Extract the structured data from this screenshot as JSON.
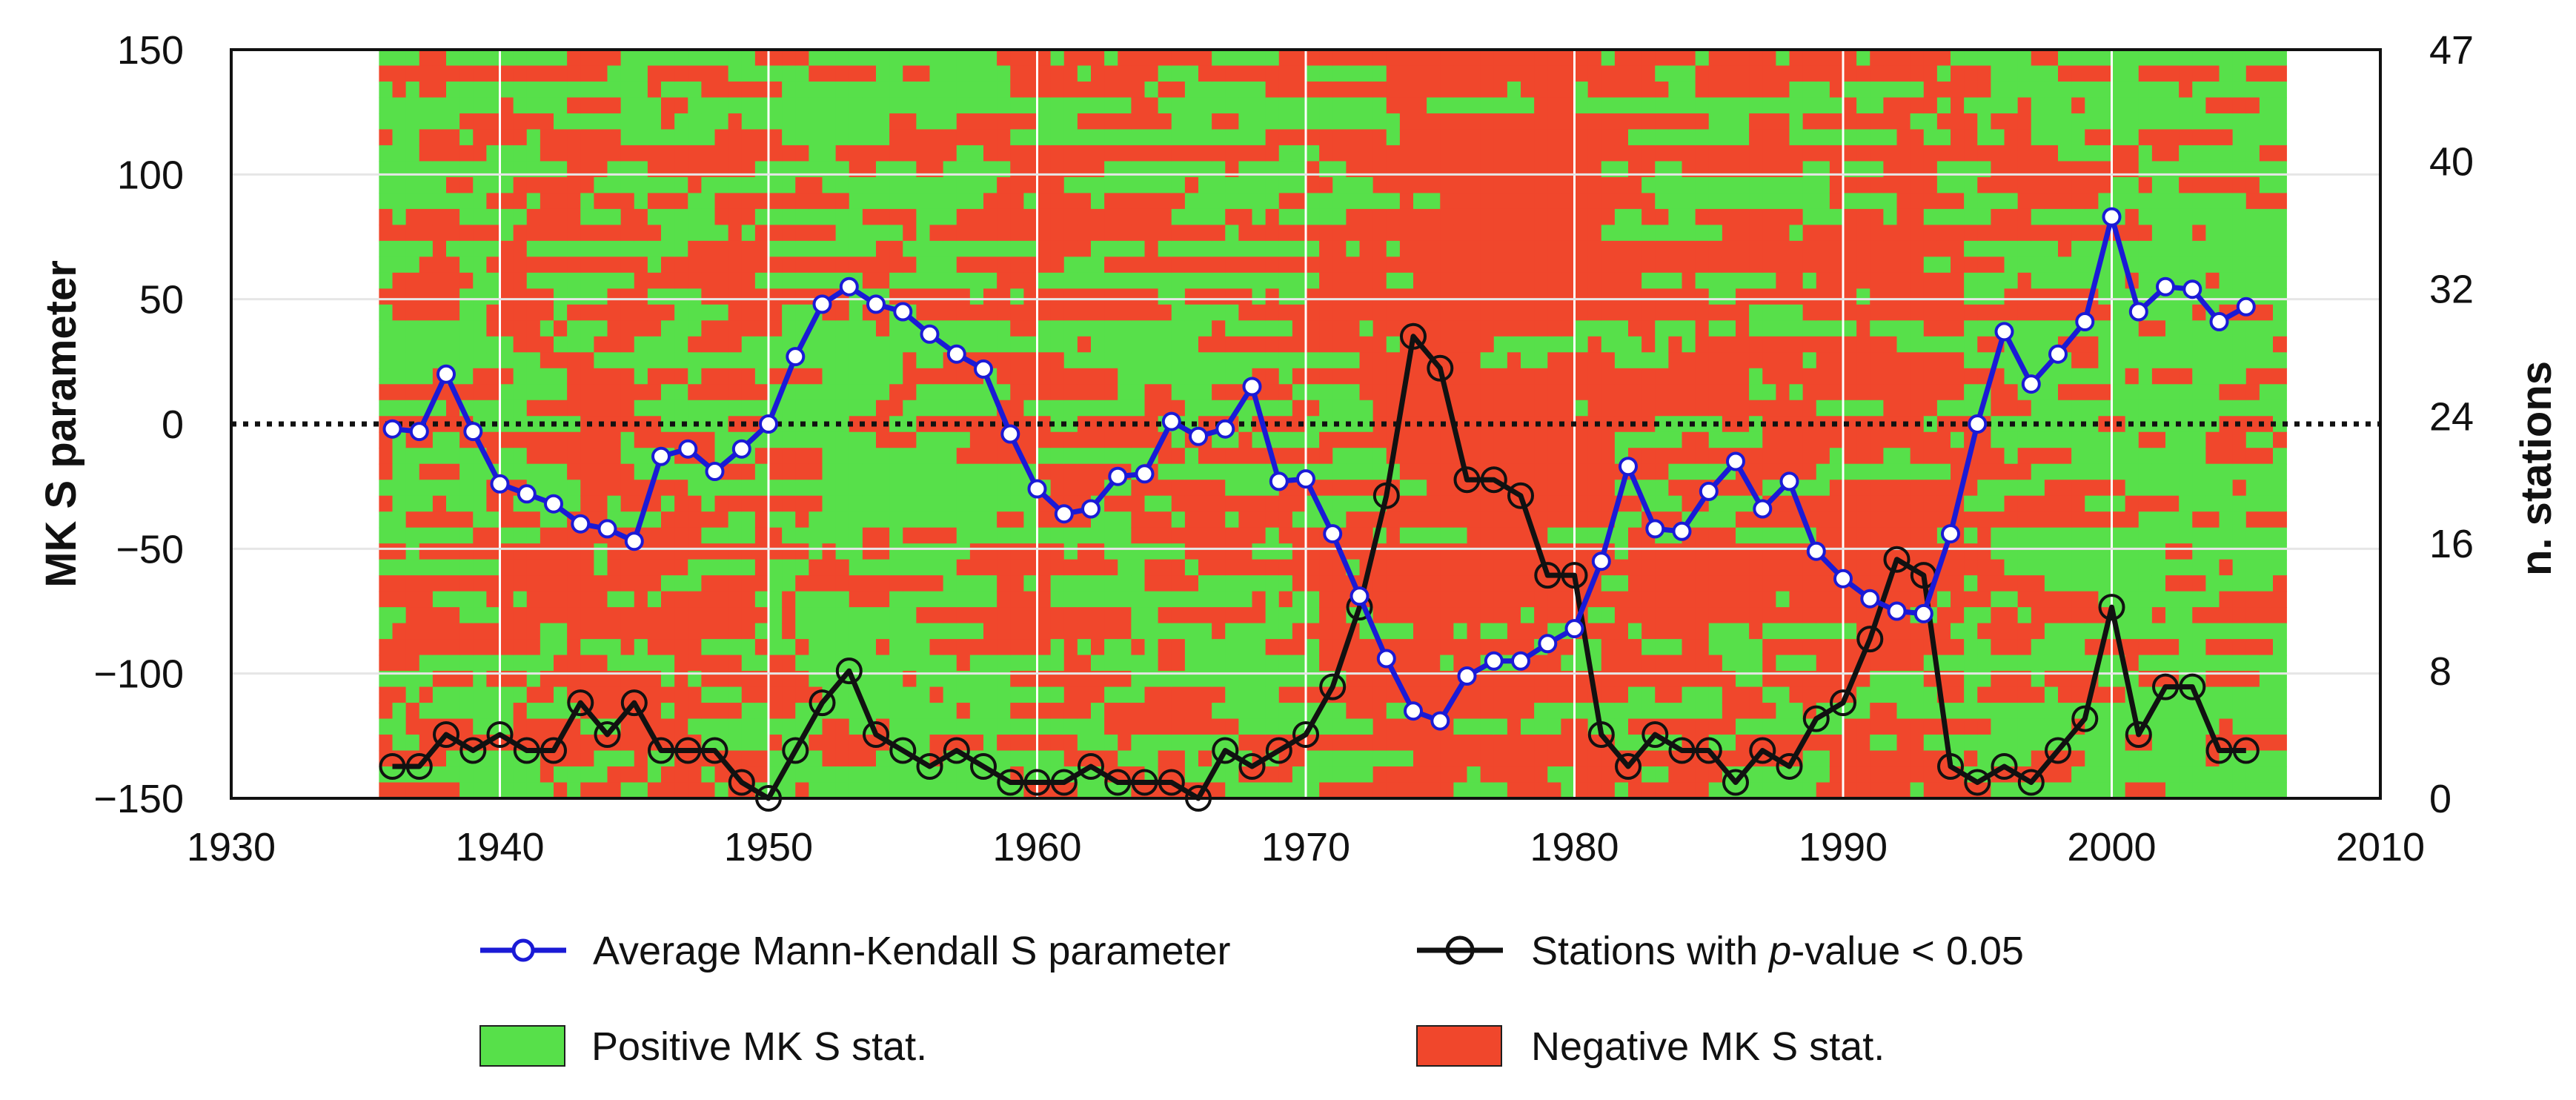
{
  "chart_data": {
    "type": "line",
    "title": "",
    "xlabel": "",
    "ylabel": "MK S parameter",
    "y2label": "n. stations",
    "xlim": [
      1930,
      2010
    ],
    "ylim": [
      -150,
      150
    ],
    "y2lim": [
      0,
      47
    ],
    "x_ticks": [
      "1930",
      "1940",
      "1950",
      "1960",
      "1970",
      "1980",
      "1990",
      "2000",
      "2010"
    ],
    "y_ticks": [
      "150",
      "100",
      "50",
      "0",
      "−50",
      "−100",
      "−150"
    ],
    "y2_ticks": [
      "47",
      "40",
      "32",
      "24",
      "16",
      "8",
      "0"
    ],
    "heatmap": {
      "x_start": 1935.5,
      "x_end": 2006.5,
      "rows": 47,
      "positive_color": "#57e04a",
      "negative_color": "#f0472c"
    },
    "series": [
      {
        "name": "Average Mann-Kendall S parameter",
        "axis": "left",
        "color": "#1a1ad6",
        "x": [
          1936,
          1937,
          1938,
          1939,
          1940,
          1941,
          1942,
          1943,
          1944,
          1945,
          1946,
          1947,
          1948,
          1949,
          1950,
          1951,
          1952,
          1953,
          1954,
          1955,
          1956,
          1957,
          1958,
          1959,
          1960,
          1961,
          1962,
          1963,
          1964,
          1965,
          1966,
          1967,
          1968,
          1969,
          1970,
          1971,
          1972,
          1973,
          1974,
          1975,
          1976,
          1977,
          1978,
          1979,
          1980,
          1981,
          1982,
          1983,
          1984,
          1985,
          1986,
          1987,
          1988,
          1989,
          1990,
          1991,
          1992,
          1993,
          1994,
          1995,
          1996,
          1997,
          1998,
          1999,
          2000,
          2001,
          2002,
          2003,
          2004,
          2005
        ],
        "values": [
          -2,
          -3,
          20,
          -3,
          -24,
          -28,
          -32,
          -40,
          -42,
          -47,
          -13,
          -10,
          -19,
          -10,
          0,
          27,
          48,
          55,
          48,
          45,
          36,
          28,
          22,
          -4,
          -26,
          -36,
          -34,
          -21,
          -20,
          1,
          -5,
          -2,
          15,
          -23,
          -22,
          -44,
          -69,
          -94,
          -115,
          -119,
          -101,
          -95,
          -95,
          -88,
          -82,
          -55,
          -17,
          -42,
          -43,
          -27,
          -15,
          -34,
          -23,
          -51,
          -62,
          -70,
          -75,
          -76,
          -44,
          0,
          37,
          16,
          28,
          41,
          83,
          45,
          55,
          54,
          41,
          47
        ]
      },
      {
        "name": "Stations with p-value < 0.05",
        "axis": "right",
        "color": "#111111",
        "x": [
          1936,
          1937,
          1938,
          1939,
          1940,
          1941,
          1942,
          1943,
          1944,
          1945,
          1946,
          1947,
          1948,
          1949,
          1950,
          1951,
          1952,
          1953,
          1954,
          1955,
          1956,
          1957,
          1958,
          1959,
          1960,
          1961,
          1962,
          1963,
          1964,
          1965,
          1966,
          1967,
          1968,
          1969,
          1970,
          1971,
          1972,
          1973,
          1974,
          1975,
          1976,
          1977,
          1978,
          1979,
          1980,
          1981,
          1982,
          1983,
          1984,
          1985,
          1986,
          1987,
          1988,
          1989,
          1990,
          1991,
          1992,
          1993,
          1994,
          1995,
          1996,
          1997,
          1998,
          1999,
          2000,
          2001,
          2002,
          2003,
          2004,
          2005
        ],
        "values": [
          2,
          2,
          4,
          3,
          4,
          3,
          3,
          6,
          4,
          6,
          3,
          3,
          3,
          1,
          0,
          3,
          6,
          8,
          4,
          3,
          2,
          3,
          2,
          1,
          1,
          1,
          2,
          1,
          1,
          1,
          0,
          3,
          2,
          3,
          4,
          7,
          12,
          19,
          29,
          27,
          20,
          20,
          19,
          14,
          14,
          4,
          2,
          4,
          3,
          3,
          1,
          3,
          2,
          5,
          6,
          10,
          15,
          14,
          2,
          1,
          2,
          1,
          3,
          5,
          12,
          4,
          7,
          7,
          3,
          3
        ]
      }
    ],
    "legend": [
      {
        "label": "Average Mann-Kendall S parameter",
        "kind": "line-marker",
        "color": "#1a1ad6"
      },
      {
        "label": "Stations with ",
        "label_italic": "p",
        "label_rest": "-value < 0.05",
        "kind": "line-marker",
        "color": "#111111"
      },
      {
        "label": "Positive MK S stat.",
        "kind": "patch",
        "color": "#57e04a"
      },
      {
        "label": "Negative MK S stat.",
        "kind": "patch",
        "color": "#f0472c"
      }
    ],
    "zero_line": "dotted",
    "grid": true,
    "legend_position": "bottom"
  }
}
